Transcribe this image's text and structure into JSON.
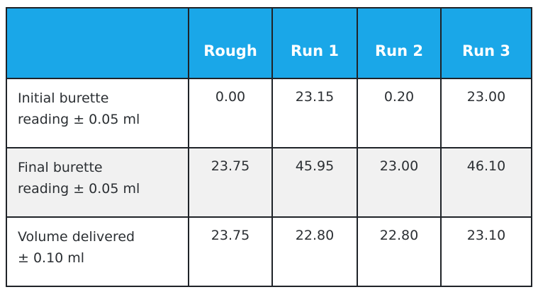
{
  "table": {
    "headers": [
      "",
      "Rough",
      "Run 1",
      "Run 2",
      "Run 3"
    ],
    "rows": [
      {
        "label_line1": "Initial burette",
        "label_line2": "reading  ± 0.05 ml",
        "values": [
          "0.00",
          "23.15",
          "0.20",
          "23.00"
        ]
      },
      {
        "label_line1": "Final burette",
        "label_line2": "reading  ± 0.05 ml",
        "values": [
          "23.75",
          "45.95",
          "23.00",
          "46.10"
        ]
      },
      {
        "label_line1": "Volume delivered",
        "label_line2": "± 0.10 ml",
        "values": [
          "23.75",
          "22.80",
          "22.80",
          "23.10"
        ]
      }
    ]
  },
  "colors": {
    "header_bg": "#1aa7e8",
    "header_text": "#ffffff",
    "border": "#1f2328",
    "shaded_row": "#f1f1f1"
  }
}
